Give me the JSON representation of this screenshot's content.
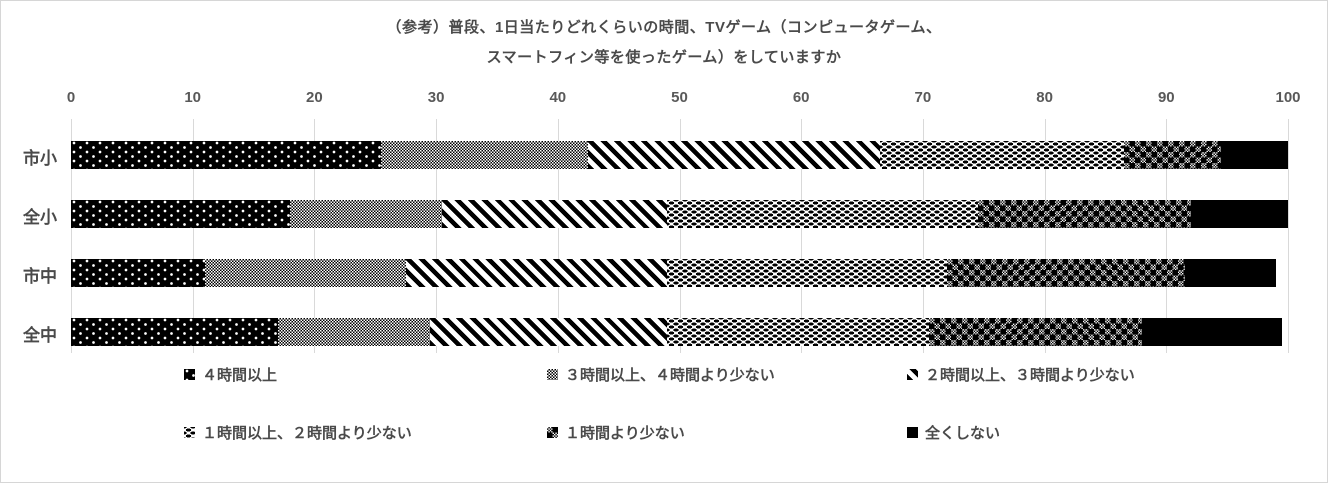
{
  "title": {
    "line1": "（参考）普段、1日当たりどれくらいの時間、TVゲーム（コンピュータゲーム、",
    "line2": "スマートフィン等を使ったゲーム）をしていますか"
  },
  "chart_data": {
    "type": "bar",
    "orientation": "horizontal",
    "stacked": true,
    "title": "（参考）普段、1日当たりどれくらいの時間、TVゲーム（コンピュータゲーム、スマートフィン等を使ったゲーム）をしていますか",
    "xlabel": "",
    "ylabel": "",
    "xlim": [
      0,
      100
    ],
    "xticks": [
      0,
      10,
      20,
      30,
      40,
      50,
      60,
      70,
      80,
      90,
      100
    ],
    "grid": "vertical",
    "legend_position": "bottom",
    "categories": [
      "市小",
      "全小",
      "市中",
      "全中"
    ],
    "series": [
      {
        "name": "４時間以上",
        "pattern": "black-with-white-dots",
        "values": [
          25.5,
          18,
          11,
          17
        ]
      },
      {
        "name": "３時間以上、４時間より少ない",
        "pattern": "fine-checker-dither",
        "values": [
          17,
          12.5,
          16.5,
          12.5
        ]
      },
      {
        "name": "２時間以上、３時間より少ない",
        "pattern": "diagonal-stripes",
        "values": [
          24,
          18.5,
          21.5,
          19.5
        ]
      },
      {
        "name": "１時間以上、２時間より少ない",
        "pattern": "small-black-dashes",
        "values": [
          20,
          25.5,
          23,
          21.5
        ]
      },
      {
        "name": "１時間より少ない",
        "pattern": "coarse-checker-grid",
        "values": [
          8,
          17.5,
          19.5,
          17.5
        ]
      },
      {
        "name": "全くしない",
        "pattern": "solid-black",
        "values": [
          5.5,
          8,
          7.5,
          11.5
        ]
      }
    ],
    "colors": {
      "ink": "#000000",
      "text": "#4a4a4a",
      "tick_text": "#595959",
      "gridline": "#d9d9d9",
      "background": "#ffffff"
    }
  }
}
